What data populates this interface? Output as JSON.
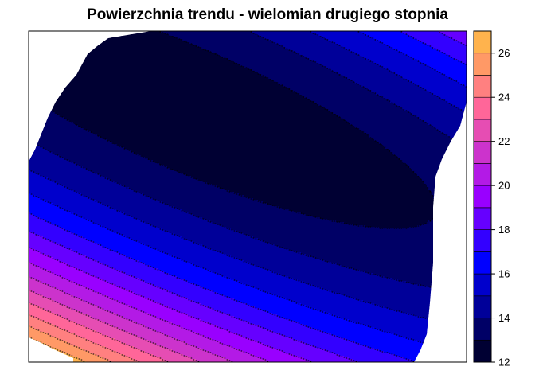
{
  "chart_data": {
    "type": "heatmap",
    "subtype": "filled-contour",
    "title": "Powierzchnia trendu - wielomian drugiego stopnia",
    "xlabel": "",
    "ylabel": "",
    "legend": {
      "placement": "right",
      "levels": [
        12,
        13,
        14,
        15,
        16,
        17,
        18,
        19,
        20,
        21,
        22,
        23,
        24,
        25,
        26,
        27
      ],
      "ticks": [
        12,
        14,
        16,
        18,
        20,
        22,
        24,
        26
      ],
      "colors": [
        "#000033",
        "#000066",
        "#000099",
        "#0000CC",
        "#0000FF",
        "#3300FF",
        "#6600FF",
        "#9900FF",
        "#B31AE6",
        "#CC33CC",
        "#E64DB3",
        "#FF6699",
        "#FF8080",
        "#FF9966",
        "#FFB34D",
        "#FFCC33",
        "#FFE61A",
        "#FFFF00",
        "#FFFF60"
      ]
    },
    "surface": {
      "description": "quadratic trend surface",
      "minimum": 12.3,
      "maximum": 26.5
    },
    "grid": false
  }
}
